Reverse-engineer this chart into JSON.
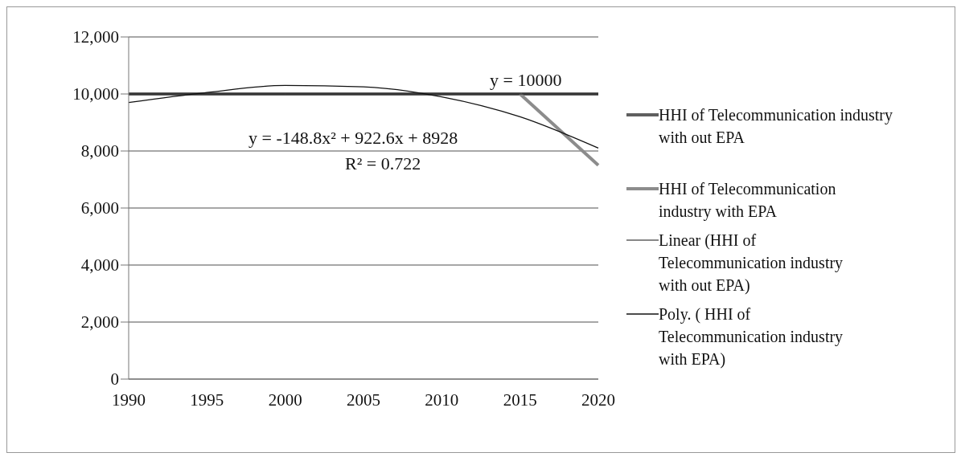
{
  "chart_data": {
    "type": "line",
    "categories": [
      "1990",
      "1995",
      "2000",
      "2005",
      "2010",
      "2015",
      "2020"
    ],
    "series": [
      {
        "name": "HHI of Telecommunication industry with out EPA",
        "color": "#5f5f5f",
        "values": [
          10000,
          10000,
          10000,
          10000,
          10000,
          10000,
          10000
        ]
      },
      {
        "name": "HHI of Telecommunication industry with EPA",
        "color": "#8c8c8c",
        "values": [
          null,
          null,
          null,
          null,
          null,
          10000,
          7500
        ]
      },
      {
        "name": "Linear (HHI of Telecommunication industry with out EPA)",
        "color": "#111111",
        "values": [
          10000,
          10000,
          10000,
          10000,
          10000,
          10000,
          10000
        ]
      },
      {
        "name": "Poly. ( HHI of Telecommunication industry with EPA)",
        "color": "#111111",
        "values": [
          9700,
          10050,
          10300,
          10250,
          9900,
          9200,
          8100
        ]
      }
    ],
    "ylim": [
      0,
      12000
    ],
    "yticks": [
      {
        "value": 0,
        "label": "0"
      },
      {
        "value": 2000,
        "label": "2,000"
      },
      {
        "value": 4000,
        "label": "4,000"
      },
      {
        "value": 6000,
        "label": "6,000"
      },
      {
        "value": 8000,
        "label": "8,000"
      },
      {
        "value": 10000,
        "label": "10,000"
      },
      {
        "value": 12000,
        "label": "12,000"
      }
    ],
    "grid": "y",
    "legend": "right",
    "marker": "none",
    "line_style": "solid",
    "annotations": [
      "y = 10000",
      "y = -148.8x² + 922.6x + 8928",
      "R² = 0.722"
    ]
  }
}
